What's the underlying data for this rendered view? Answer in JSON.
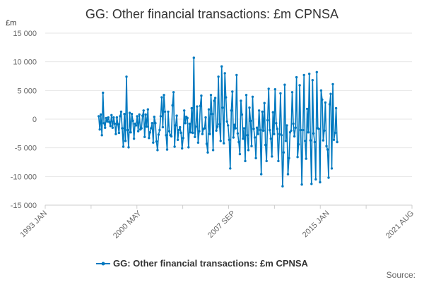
{
  "chart_data": {
    "type": "line",
    "title": "GG: Other financial transactions: £m CPNSA",
    "ylabel": "£m",
    "xlabel": "",
    "ylim": [
      -15000,
      15000
    ],
    "y_ticks": [
      15000,
      10000,
      5000,
      0,
      -5000,
      -10000,
      -15000
    ],
    "y_tick_labels": [
      "15 000",
      "10 000",
      "5 000",
      "0",
      "-5 000",
      "-10 000",
      "-15 000"
    ],
    "x_range": [
      "1993 JAN",
      "2021 AUG"
    ],
    "x_ticks": [
      "1993 JAN",
      "2000 MAY",
      "2007 SEP",
      "2015 JAN",
      "2021 AUG"
    ],
    "grid": "horizontal",
    "legend_position": "bottom",
    "series": [
      {
        "name": "GG: Other financial transactions: £m CPNSA",
        "color": "#0079c0",
        "start": "1997 MAR",
        "frequency": "monthly",
        "values": [
          500,
          -1800,
          800,
          -2800,
          4600,
          -700,
          -1500,
          200,
          -400,
          300,
          -500,
          -1200,
          700,
          -1500,
          300,
          -800,
          -2600,
          300,
          -900,
          -2400,
          500,
          1300,
          -1600,
          -4800,
          900,
          -3800,
          7400,
          -1900,
          -4900,
          1100,
          -2300,
          900,
          -300,
          -3400,
          -800,
          -1100,
          500,
          -2100,
          800,
          -1800,
          -1600,
          600,
          1500,
          -3100,
          800,
          -1300,
          1700,
          -3300,
          -2300,
          -1600,
          -700,
          -4100,
          400,
          -700,
          -3900,
          -5400,
          -2700,
          -1900,
          500,
          3800,
          -1400,
          4200,
          1300,
          -2800,
          -5300,
          1300,
          -2100,
          -2800,
          -3000,
          2400,
          4700,
          -4800,
          -1100,
          600,
          -3600,
          -1900,
          -1400,
          -2400,
          -5100,
          -3300,
          1500,
          -700,
          400,
          200,
          -4900,
          -800,
          -2300,
          1900,
          -2400,
          10700,
          -3100,
          -1300,
          2200,
          -4100,
          -2100,
          2300,
          4100,
          -2600,
          -1700,
          -1600,
          300,
          -4300,
          -5800,
          1700,
          -2600,
          4200,
          900,
          -5400,
          3200,
          3700,
          -2000,
          -1300,
          7400,
          -900,
          -3800,
          9200,
          2000,
          -4200,
          8000,
          3800,
          -400,
          -1100,
          -3600,
          -8600,
          1500,
          4800,
          -3200,
          -1000,
          -1600,
          7700,
          -2500,
          -4000,
          -6100,
          3200,
          800,
          -3400,
          -1600,
          -7300,
          4200,
          -2800,
          -5400,
          2000,
          -300,
          -4700,
          3900,
          -1700,
          -3200,
          -6800,
          -1500,
          -2600,
          1500,
          -1900,
          -9600,
          1300,
          -2000,
          2800,
          -4500,
          -7300,
          -200,
          5300,
          -1900,
          -3400,
          -6500,
          1200,
          -2600,
          5200,
          -700,
          -1700,
          -7300,
          -2600,
          4500,
          -2800,
          -11700,
          -5800,
          6000,
          -3800,
          -1100,
          -9600,
          -6800,
          -2300,
          -2000,
          4700,
          -800,
          -3000,
          -1500,
          7300,
          -6600,
          -4400,
          5900,
          -1900,
          -11400,
          -1900,
          7700,
          -3800,
          -6900,
          1800,
          -2300,
          7900,
          -3700,
          -11300,
          6800,
          -2500,
          -4000,
          -10500,
          8200,
          -1600,
          -1700,
          -11000,
          5000,
          3400,
          -3700,
          -2000,
          2900,
          -4700,
          -5300,
          -10200,
          2600,
          4400,
          -8600,
          6100,
          -3600,
          -2400,
          1900,
          -4000
        ]
      }
    ]
  },
  "legend": {
    "label": "GG: Other financial transactions: £m CPNSA"
  },
  "source": {
    "label": "Source:"
  }
}
